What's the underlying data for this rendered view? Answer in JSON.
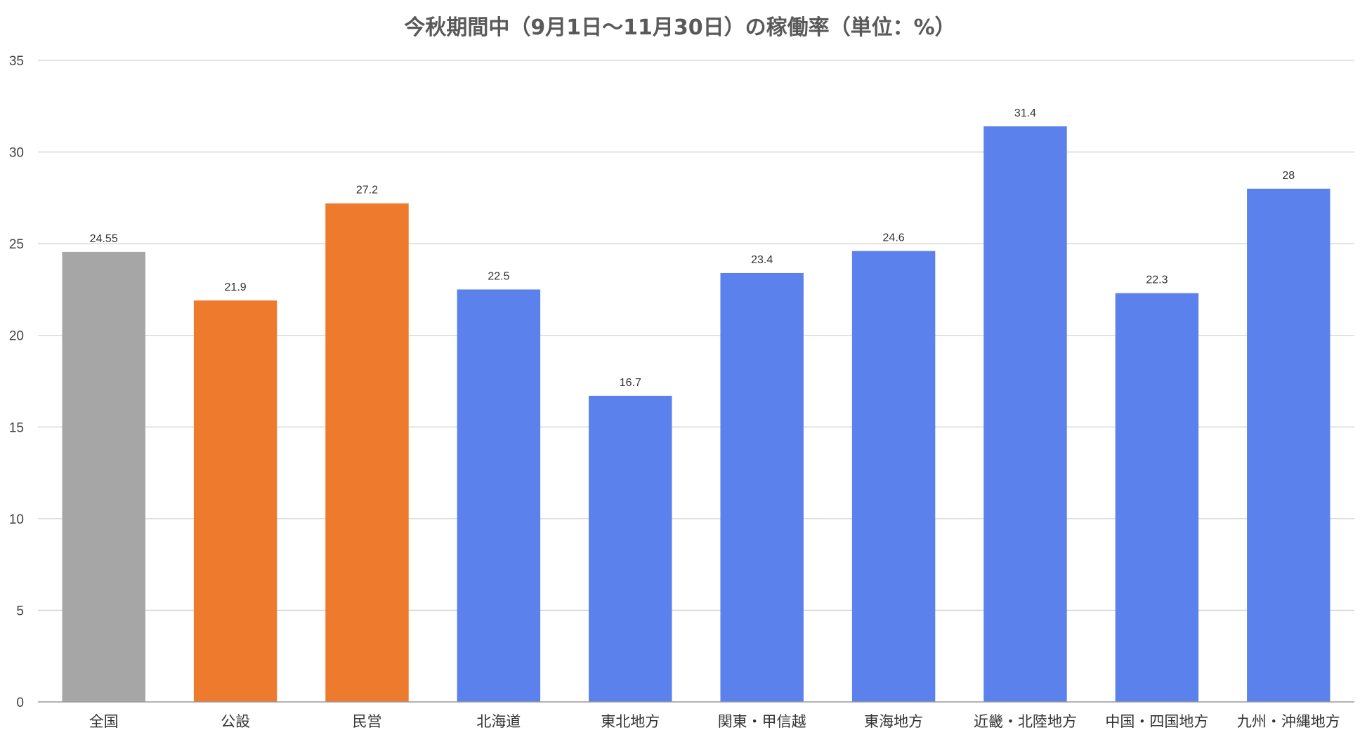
{
  "chart_data": {
    "type": "bar",
    "title": "今秋期間中（9月1日〜11月30日）の稼働率（単位：%）",
    "xlabel": "",
    "ylabel": "",
    "ylim": [
      0,
      35
    ],
    "yticks": [
      0,
      5,
      10,
      15,
      20,
      25,
      30,
      35
    ],
    "grid": true,
    "legend": "none",
    "categories": [
      "全国",
      "公設",
      "民営",
      "北海道",
      "東北地方",
      "関東・甲信越",
      "東海地方",
      "近畿・北陸地方",
      "中国・四国地方",
      "九州・沖縄地方"
    ],
    "values": [
      24.55,
      21.9,
      27.2,
      22.5,
      16.7,
      23.4,
      24.6,
      31.4,
      22.3,
      28
    ],
    "value_labels": [
      "24.55",
      "21.9",
      "27.2",
      "22.5",
      "16.7",
      "23.4",
      "24.6",
      "31.4",
      "22.3",
      "28"
    ],
    "colors": [
      "#a6a6a6",
      "#ed7a2d",
      "#ed7a2d",
      "#5b82ec",
      "#5b82ec",
      "#5b82ec",
      "#5b82ec",
      "#5b82ec",
      "#5b82ec",
      "#5b82ec"
    ]
  }
}
